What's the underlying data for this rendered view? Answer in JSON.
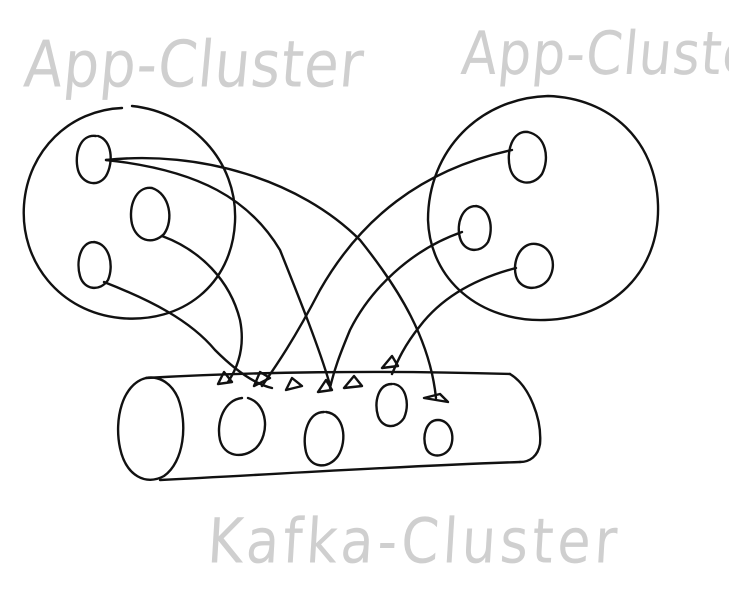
{
  "diagram": {
    "labels": {
      "left_cluster": "App-Cluster",
      "right_cluster": "App-Cluster",
      "bottom_cluster": "Kafka-Cluster"
    },
    "colors": {
      "ink": "#111111",
      "label": "#cfcfcf",
      "background": "#ffffff"
    }
  }
}
